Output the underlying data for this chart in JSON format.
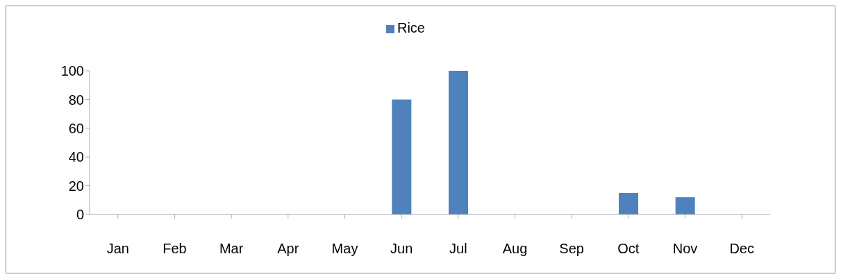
{
  "chart_data": {
    "type": "bar",
    "categories": [
      "Jan",
      "Feb",
      "Mar",
      "Apr",
      "May",
      "Jun",
      "Jul",
      "Aug",
      "Sep",
      "Oct",
      "Nov",
      "Dec"
    ],
    "series": [
      {
        "name": "Rice",
        "color": "#4f81bd",
        "values": [
          0,
          0,
          0,
          0,
          0,
          80,
          100,
          0,
          0,
          15,
          12,
          0
        ]
      }
    ],
    "ylim": [
      0,
      100
    ],
    "yticks": [
      0,
      20,
      40,
      60,
      80,
      100
    ],
    "grid": false,
    "legend": "top"
  }
}
